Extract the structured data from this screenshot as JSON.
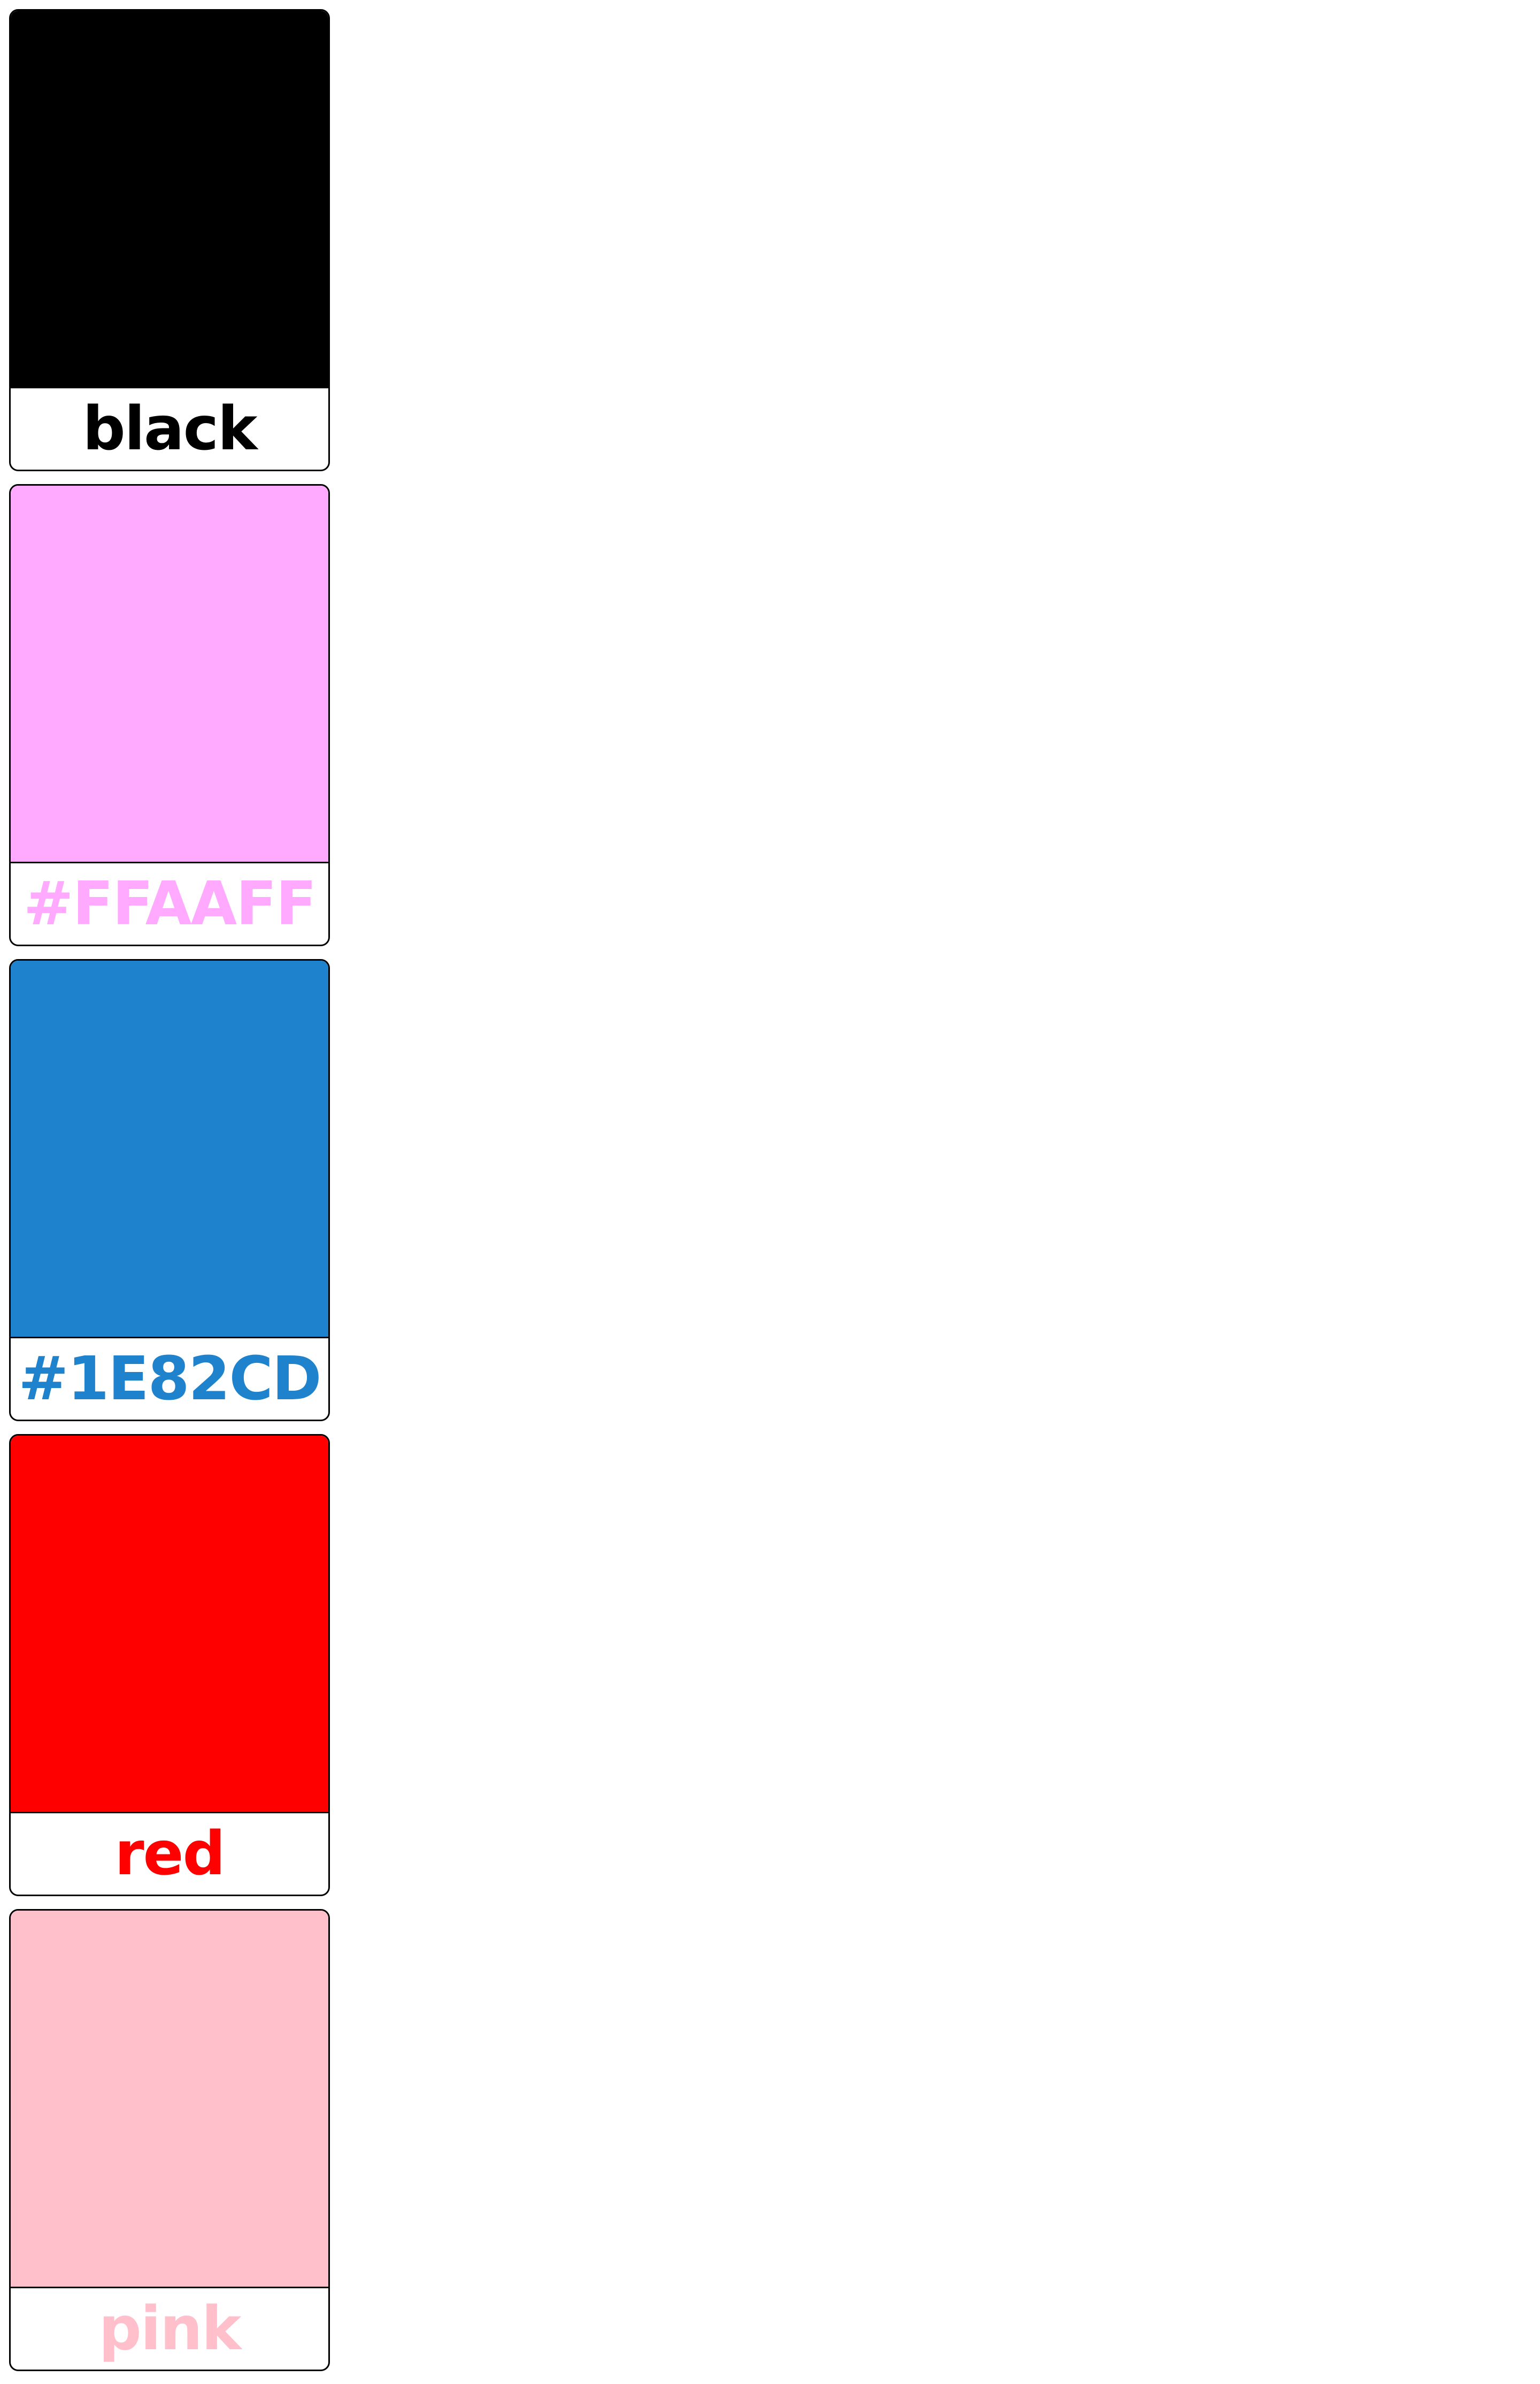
{
  "swatches": [
    {
      "label": "black",
      "color": "#000000"
    },
    {
      "label": "#FFAAFF",
      "color": "#FFAAFF"
    },
    {
      "label": "#1E82CD",
      "color": "#1E82CD"
    },
    {
      "label": "red",
      "color": "#FF0000"
    },
    {
      "label": "pink",
      "color": "#FFC0CB"
    }
  ]
}
